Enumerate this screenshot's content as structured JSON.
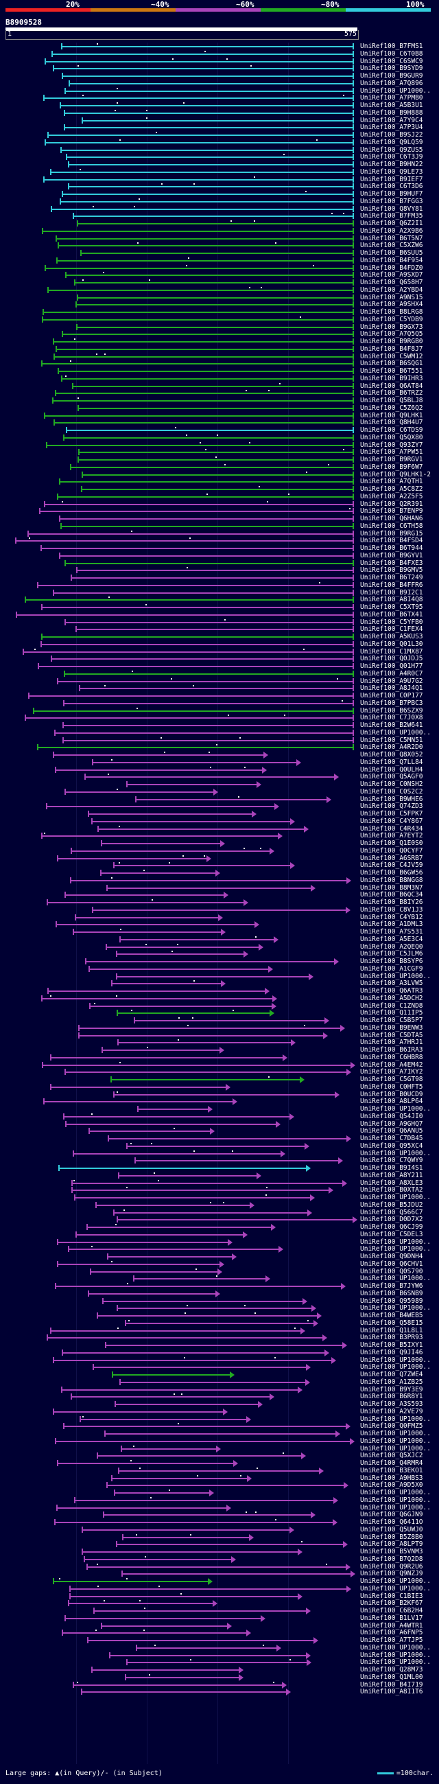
{
  "legend": {
    "items": [
      {
        "label": "20%",
        "color": "#ee2222"
      },
      {
        "label": "~40%",
        "color": "#cc7711"
      },
      {
        "label": "~60%",
        "color": "#aa44bb"
      },
      {
        "label": "~80%",
        "color": "#22aa22"
      },
      {
        "label": "100%",
        "color": "#33ccdd"
      }
    ]
  },
  "query": {
    "name": "B8909528",
    "start": "1",
    "end": "575"
  },
  "footer": {
    "gaps_text": "Large gaps: ▲(in Query)/- (in Subject)",
    "scale_text": "=100char."
  },
  "hits": [
    "UniRef100_B7FMS1",
    "UniRef100_C6T0B8",
    "UniRef100_C6SWC9",
    "UniRef100_B9SYD9",
    "UniRef100_B9GUR9",
    "UniRef100_A7Q896",
    "UniRef100_UP1000..",
    "UniRef100_A7PMB0",
    "UniRef100_A5B3U1",
    "UniRef100_B9H888",
    "UniRef100_A7Y9C4",
    "UniRef100_A7P3U4",
    "UniRef100_B9SJ22",
    "UniRef100_Q9LQ59",
    "UniRef100_Q9ZUS5",
    "UniRef100_C6T3J9",
    "UniRef100_B9HN22",
    "UniRef100_Q9LE73",
    "UniRef100_B9IEF7",
    "UniRef100_C6T3D6",
    "UniRef100_B9HUF7",
    "UniRef100_B7FGG3",
    "UniRef100_Q8VY81",
    "UniRef100_B7FM35",
    "UniRef100_Q6Z2I1",
    "UniRef100_A2X9B6",
    "UniRef100_B6T5N7",
    "UniRef100_C5XZW6",
    "UniRef100_B6SUU5",
    "UniRef100_B4F954",
    "UniRef100_B4FDZ0",
    "UniRef100_A9SXD7",
    "UniRef100_Q658H7",
    "UniRef100_A2YBD4",
    "UniRef100_A9NS15",
    "UniRef100_A9SHX4",
    "UniRef100_B8LRG8",
    "UniRef100_C5YDB9",
    "UniRef100_B9GX73",
    "UniRef100_A7Q5Q5",
    "UniRef100_B9RGB0",
    "UniRef100_B4F8J7",
    "UniRef100_C5WM12",
    "UniRef100_B6SQG1",
    "UniRef100_B6T551",
    "UniRef100_B9IHR3",
    "UniRef100_Q6AT84",
    "UniRef100_B6TRZ2",
    "UniRef100_Q5BLJ8",
    "UniRef100_C5Z6Q2",
    "UniRef100_Q9LHK1",
    "UniRef100_Q8H4U7",
    "UniRef100_C6TDS9",
    "UniRef100_Q5QX80",
    "UniRef100_Q93ZY7",
    "UniRef100_A7PW51",
    "UniRef100_B9RGV1",
    "UniRef100_B9F6W7",
    "UniRef100_Q9LHK1-2",
    "UniRef100_A7QTH1",
    "UniRef100_A5C8Z2",
    "UniRef100_A2Z5F5",
    "UniRef100_Q2R391",
    "UniRef100_B7ENP9",
    "UniRef100_Q6HAN6",
    "UniRef100_C6TH58",
    "UniRef100_B9RG15",
    "UniRef100_B4FSD4",
    "UniRef100_B6T944",
    "UniRef100_B9GYV1",
    "UniRef100_B4FXE3",
    "UniRef100_B9GMV5",
    "UniRef100_B6T249",
    "UniRef100_B4FFR6",
    "UniRef100_B9I2C1",
    "UniRef100_A8I4Q8",
    "UniRef100_C5XT95",
    "UniRef100_B6TX41",
    "UniRef100_C5YFB0",
    "UniRef100_C1FEX4",
    "UniRef100_A5KUS3",
    "UniRef100_Q01L30",
    "UniRef100_C1MX87",
    "UniRef100_Q0JDJ5",
    "UniRef100_Q01H77",
    "UniRef100_A4R0C7",
    "UniRef100_A9U7G2",
    "UniRef100_A8J4Q1",
    "UniRef100_C0P177",
    "UniRef100_B7PBC3",
    "UniRef100_B6SZX9",
    "UniRef100_C7J0X8",
    "UniRef100_B2W641",
    "UniRef100_UP1000..",
    "UniRef100_C5MN51",
    "UniRef100_A4R2D0",
    "UniRef100_Q8X052",
    "UniRef100_Q7LL84",
    "UniRef100_Q0ULH4",
    "UniRef100_Q5AGF0",
    "UniRef100_C0NSH2",
    "UniRef100_C0S2C2",
    "UniRef100_B9WHE6",
    "UniRef100_Q74ZD3",
    "UniRef100_C5FPK7",
    "UniRef100_C4Y867",
    "UniRef100_C4R434",
    "UniRef100_A7EYT2",
    "UniRef100_Q1E0S0",
    "UniRef100_Q0CYF7",
    "UniRef100_A6SRB7",
    "UniRef100_C4JV59",
    "UniRef100_B6GW56",
    "UniRef100_B8NGG8",
    "UniRef100_B8M3N7",
    "UniRef100_B6QC34",
    "UniRef100_B8IY26",
    "UniRef100_C8V1J3",
    "UniRef100_C4YB12",
    "UniRef100_A1DML3",
    "UniRef100_A7S531",
    "UniRef100_A5E3C4",
    "UniRef100_A2QEQ0",
    "UniRef100_C5JLM6",
    "UniRef100_B8SYP6",
    "UniRef100_A1CGF9",
    "UniRef100_UP1000..",
    "UniRef100_A3LVW5",
    "UniRef100_Q6ATR3",
    "UniRef100_A5DCH2",
    "UniRef100_C1ZND8",
    "UniRef100_Q11IP5",
    "UniRef100_C5B5P7",
    "UniRef100_B9ENW3",
    "UniRef100_C5DTA5",
    "UniRef100_A7HRJ1",
    "UniRef100_B6IRA3",
    "UniRef100_C6HBR8",
    "UniRef100_A4EM42",
    "UniRef100_A7IKY2",
    "UniRef100_C5GT98",
    "UniRef100_C0HFT5",
    "UniRef100_B0UCD9",
    "UniRef100_A8LP64",
    "UniRef100_UP1000..",
    "UniRef100_Q54JI0",
    "UniRef100_A9GHQ7",
    "UniRef100_Q6ANU5",
    "UniRef100_C7DB45",
    "UniRef100_Q95XC4",
    "UniRef100_UP1000..",
    "UniRef100_C7QWY9",
    "UniRef100_B9I4S1",
    "UniRef100_A8Y211",
    "UniRef100_A8XLE3",
    "UniRef100_B0XTA2",
    "UniRef100_UP1000..",
    "UniRef100_B5JDU2",
    "UniRef100_Q566C7",
    "UniRef100_D0D7X2",
    "UniRef100_Q6CJ99",
    "UniRef100_C5DEL3",
    "UniRef100_UP1000..",
    "UniRef100_UP1000..",
    "UniRef100_Q9DNH4",
    "UniRef100_Q6CHV1",
    "UniRef100_Q0S790",
    "UniRef100_UP1000..",
    "UniRef100_B7JYW6",
    "UniRef100_B6SNB9",
    "UniRef100_Q95989",
    "UniRef100_UP1000..",
    "UniRef100_B4WEB5",
    "UniRef100_Q58E15",
    "UniRef100_Q1L8L1",
    "UniRef100_B3PR93",
    "UniRef100_B5IXY1",
    "UniRef100_Q9JI46",
    "UniRef100_UP1000..",
    "UniRef100_UP1000..",
    "UniRef100_Q7ZWE4",
    "UniRef100_A1ZB25",
    "UniRef100_B9Y3E9",
    "UniRef100_B6R8Y1",
    "UniRef100_A3S593",
    "UniRef100_A2VE79",
    "UniRef100_UP1000..",
    "UniRef100_Q0FMZ5",
    "UniRef100_UP1000..",
    "UniRef100_UP1000..",
    "UniRef100_UP1000..",
    "UniRef100_Q5XJC2",
    "UniRef100_Q4RMR4",
    "UniRef100_B3EKO1",
    "UniRef100_A9HBS3",
    "UniRef100_A9D5X0",
    "UniRef100_UP1000..",
    "UniRef100_UP1000..",
    "UniRef100_UP1000..",
    "UniRef100_Q6GJN9",
    "UniRef100_Q6411O",
    "UniRef100_Q5UWJ0",
    "UniRef100_B5Z8B0",
    "UniRef100_A8LPT9",
    "UniRef100_B5VNM3",
    "UniRef100_B7Q2D8",
    "UniRef100_Q9R2U6",
    "UniRef100_Q9NZJ9",
    "UniRef100_UP1000..",
    "UniRef100_UP1000..",
    "UniRef100_C1BIE3",
    "UniRef100_B2KF67",
    "UniRef100_C6B2H4",
    "UniRef100_B1LV17",
    "UniRef100_A4WTR1",
    "UniRef100_A6FNP5",
    "UniRef100_A7TJP5",
    "UniRef100_UP1000..",
    "UniRef100_UP1000..",
    "UniRef100_UP1000..",
    "UniRef100_Q28M73",
    "UniRef100_Q1ML00",
    "UniRef100_B4I719",
    "UniRef100_A8I1T6"
  ]
}
